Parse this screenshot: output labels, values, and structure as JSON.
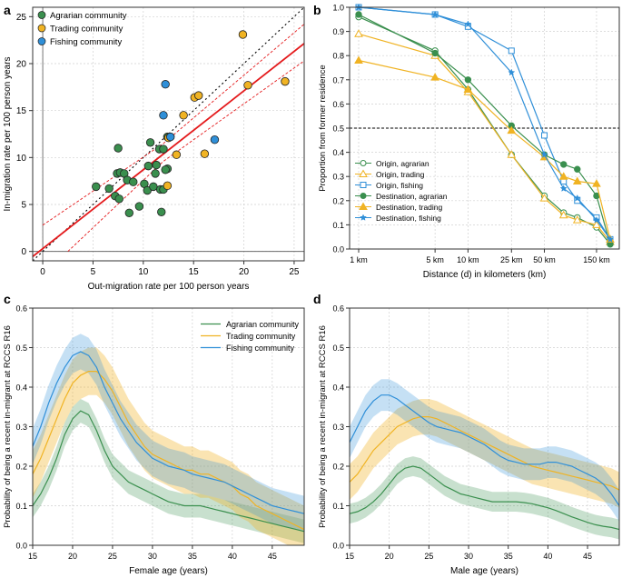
{
  "panels": {
    "a": "a",
    "b": "b",
    "c": "c",
    "d": "d"
  },
  "colors": {
    "agrarian": "#3a8f4e",
    "trading": "#f0b323",
    "fishing": "#2f8fd8",
    "fit": "#e41a1c",
    "ci": "#e41a1c",
    "identity": "#000000"
  },
  "chart_data": [
    {
      "id": "a",
      "type": "scatter",
      "xlabel": "Out-migration rate per 100 person years",
      "ylabel": "In-migration rate per 100 person years",
      "xlim": [
        -1,
        26
      ],
      "ylim": [
        -1,
        26
      ],
      "xticks": [
        0,
        5,
        10,
        15,
        20,
        25
      ],
      "yticks": [
        0,
        5,
        10,
        15,
        20,
        25
      ],
      "legend": [
        "Agrarian community",
        "Trading community",
        "Fishing community"
      ],
      "fit": {
        "intercept": 0.3,
        "slope": 0.84
      },
      "ci_upper": [
        [
          0,
          2.8
        ],
        [
          12,
          11.5
        ],
        [
          26,
          24.2
        ]
      ],
      "ci_lower": [
        [
          2.5,
          0
        ],
        [
          12,
          9.6
        ],
        [
          26,
          20.3
        ]
      ],
      "series": [
        {
          "name": "Agrarian community",
          "color_key": "agrarian",
          "points": [
            [
              5.3,
              6.9
            ],
            [
              6.6,
              6.7
            ],
            [
              7.4,
              8.3
            ],
            [
              7.7,
              8.4
            ],
            [
              7.5,
              11.0
            ],
            [
              7.2,
              5.9
            ],
            [
              7.6,
              5.6
            ],
            [
              8.1,
              8.3
            ],
            [
              8.4,
              7.6
            ],
            [
              8.6,
              4.1
            ],
            [
              9.0,
              7.4
            ],
            [
              9.6,
              4.8
            ],
            [
              10.1,
              7.2
            ],
            [
              10.4,
              6.5
            ],
            [
              10.7,
              11.6
            ],
            [
              11.0,
              6.9
            ],
            [
              11.2,
              8.3
            ],
            [
              11.3,
              9.2
            ],
            [
              11.6,
              10.9
            ],
            [
              11.7,
              6.6
            ],
            [
              11.8,
              4.2
            ],
            [
              12.0,
              10.9
            ],
            [
              12.0,
              6.6
            ],
            [
              12.4,
              8.8
            ],
            [
              12.4,
              12.2
            ],
            [
              10.5,
              9.1
            ],
            [
              12.2,
              8.7
            ]
          ]
        },
        {
          "name": "Trading community",
          "color_key": "trading",
          "points": [
            [
              12.4,
              7.0
            ],
            [
              12.5,
              12.1
            ],
            [
              13.3,
              10.3
            ],
            [
              15.1,
              16.4
            ],
            [
              15.5,
              16.6
            ],
            [
              19.9,
              23.1
            ],
            [
              20.4,
              17.7
            ],
            [
              24.1,
              18.1
            ],
            [
              16.1,
              10.4
            ],
            [
              14.0,
              14.5
            ]
          ]
        },
        {
          "name": "Fishing community",
          "color_key": "fishing",
          "points": [
            [
              12.2,
              17.8
            ],
            [
              12.0,
              14.5
            ],
            [
              17.1,
              11.9
            ],
            [
              12.7,
              12.2
            ]
          ]
        }
      ]
    },
    {
      "id": "b",
      "type": "line",
      "xlabel": "Distance (d) in kilometers (km)",
      "ylabel": "Proportion from former residence",
      "xscale": "log",
      "xlim": [
        1,
        200
      ],
      "ylim": [
        0,
        1
      ],
      "xtick_values": [
        1,
        5,
        10,
        25,
        50,
        150
      ],
      "xtick_labels": [
        "1 km",
        "5 km",
        "10 km",
        "25 km",
        "50 km",
        "150 km"
      ],
      "yticks": [
        0.0,
        0.1,
        0.2,
        0.3,
        0.4,
        0.5,
        0.6,
        0.7,
        0.8,
        0.9,
        1.0
      ],
      "reference_line": 0.5,
      "x": [
        1,
        5,
        10,
        25,
        50,
        75,
        100,
        150,
        200
      ],
      "series": [
        {
          "name": "Origin, agrarian",
          "color_key": "agrarian",
          "marker": "open-circle",
          "values": [
            0.96,
            0.82,
            0.66,
            0.39,
            0.22,
            0.15,
            0.13,
            0.09,
            0.02
          ]
        },
        {
          "name": "Origin, trading",
          "color_key": "trading",
          "marker": "open-triangle",
          "values": [
            0.89,
            0.8,
            0.65,
            0.39,
            0.21,
            0.14,
            0.12,
            0.1,
            0.03
          ]
        },
        {
          "name": "Origin, fishing",
          "color_key": "fishing",
          "marker": "open-square",
          "values": [
            1.0,
            0.97,
            0.92,
            0.82,
            0.47,
            0.28,
            0.2,
            0.13,
            0.04
          ]
        },
        {
          "name": "Destination, agrarian",
          "color_key": "agrarian",
          "marker": "filled-circle",
          "values": [
            0.97,
            0.81,
            0.7,
            0.51,
            0.39,
            0.35,
            0.33,
            0.22,
            0.02
          ]
        },
        {
          "name": "Destination, trading",
          "color_key": "trading",
          "marker": "filled-triangle",
          "values": [
            0.78,
            0.71,
            0.66,
            0.49,
            0.38,
            0.3,
            0.28,
            0.27,
            0.04
          ]
        },
        {
          "name": "Destination, fishing",
          "color_key": "fishing",
          "marker": "filled-star",
          "values": [
            1.0,
            0.97,
            0.93,
            0.73,
            0.39,
            0.25,
            0.21,
            0.12,
            0.04
          ]
        }
      ]
    },
    {
      "id": "c",
      "type": "area",
      "xlabel": "Female age (years)",
      "ylabel": "Probability of being a recent in-migrant at RCCS R16",
      "xlim": [
        15,
        49
      ],
      "ylim": [
        0,
        0.6
      ],
      "xticks": [
        15,
        20,
        25,
        30,
        35,
        40,
        45
      ],
      "yticks": [
        0.0,
        0.1,
        0.2,
        0.3,
        0.4,
        0.5,
        0.6
      ],
      "legend": [
        "Agrarian community",
        "Trading community",
        "Fishing community"
      ],
      "x": [
        15,
        16,
        17,
        18,
        19,
        20,
        21,
        22,
        23,
        24,
        25,
        26,
        27,
        28,
        29,
        30,
        31,
        32,
        33,
        34,
        35,
        36,
        37,
        38,
        39,
        40,
        41,
        42,
        43,
        44,
        45,
        46,
        47,
        48,
        49
      ],
      "series": [
        {
          "name": "Agrarian community",
          "color_key": "agrarian",
          "band_halfwidth": 0.03,
          "values": [
            0.1,
            0.13,
            0.17,
            0.22,
            0.28,
            0.32,
            0.34,
            0.33,
            0.29,
            0.24,
            0.2,
            0.18,
            0.16,
            0.15,
            0.14,
            0.13,
            0.12,
            0.11,
            0.105,
            0.1,
            0.1,
            0.1,
            0.095,
            0.09,
            0.085,
            0.08,
            0.075,
            0.07,
            0.065,
            0.06,
            0.055,
            0.05,
            0.045,
            0.04,
            0.035
          ]
        },
        {
          "name": "Trading community",
          "color_key": "trading",
          "band_halfwidth": 0.06,
          "values": [
            0.18,
            0.22,
            0.27,
            0.32,
            0.37,
            0.41,
            0.43,
            0.44,
            0.44,
            0.42,
            0.39,
            0.35,
            0.31,
            0.28,
            0.25,
            0.23,
            0.22,
            0.21,
            0.2,
            0.19,
            0.19,
            0.18,
            0.18,
            0.17,
            0.16,
            0.15,
            0.13,
            0.12,
            0.1,
            0.09,
            0.08,
            0.07,
            0.06,
            0.05,
            0.04
          ]
        },
        {
          "name": "Fishing community",
          "color_key": "fishing",
          "band_halfwidth": 0.045,
          "values": [
            0.25,
            0.3,
            0.36,
            0.41,
            0.45,
            0.48,
            0.49,
            0.48,
            0.45,
            0.4,
            0.36,
            0.32,
            0.29,
            0.26,
            0.24,
            0.22,
            0.21,
            0.2,
            0.195,
            0.19,
            0.18,
            0.175,
            0.17,
            0.165,
            0.16,
            0.15,
            0.14,
            0.13,
            0.12,
            0.11,
            0.1,
            0.095,
            0.09,
            0.085,
            0.08
          ]
        }
      ]
    },
    {
      "id": "d",
      "type": "area",
      "xlabel": "Male age (years)",
      "ylabel": "Probability of being a recent in-migrant at RCCS R16",
      "xlim": [
        15,
        49
      ],
      "ylim": [
        0,
        0.6
      ],
      "xticks": [
        15,
        20,
        25,
        30,
        35,
        40,
        45
      ],
      "yticks": [
        0.0,
        0.1,
        0.2,
        0.3,
        0.4,
        0.5,
        0.6
      ],
      "x": [
        15,
        16,
        17,
        18,
        19,
        20,
        21,
        22,
        23,
        24,
        25,
        26,
        27,
        28,
        29,
        30,
        31,
        32,
        33,
        34,
        35,
        36,
        37,
        38,
        39,
        40,
        41,
        42,
        43,
        44,
        45,
        46,
        47,
        48,
        49
      ],
      "series": [
        {
          "name": "Agrarian community",
          "color_key": "agrarian",
          "band_halfwidth": 0.025,
          "values": [
            0.08,
            0.085,
            0.095,
            0.11,
            0.13,
            0.155,
            0.18,
            0.195,
            0.2,
            0.195,
            0.18,
            0.165,
            0.15,
            0.14,
            0.13,
            0.125,
            0.12,
            0.115,
            0.11,
            0.11,
            0.11,
            0.11,
            0.108,
            0.105,
            0.1,
            0.095,
            0.088,
            0.08,
            0.072,
            0.065,
            0.058,
            0.052,
            0.048,
            0.045,
            0.04
          ]
        },
        {
          "name": "Trading community",
          "color_key": "trading",
          "band_halfwidth": 0.045,
          "values": [
            0.16,
            0.18,
            0.21,
            0.24,
            0.26,
            0.28,
            0.3,
            0.31,
            0.32,
            0.325,
            0.325,
            0.32,
            0.31,
            0.3,
            0.29,
            0.28,
            0.27,
            0.26,
            0.25,
            0.24,
            0.23,
            0.22,
            0.21,
            0.2,
            0.195,
            0.19,
            0.185,
            0.18,
            0.175,
            0.17,
            0.165,
            0.16,
            0.155,
            0.15,
            0.14
          ]
        },
        {
          "name": "Fishing community",
          "color_key": "fishing",
          "band_halfwidth": 0.04,
          "values": [
            0.26,
            0.3,
            0.34,
            0.365,
            0.38,
            0.38,
            0.37,
            0.355,
            0.34,
            0.325,
            0.31,
            0.3,
            0.295,
            0.29,
            0.285,
            0.275,
            0.265,
            0.255,
            0.24,
            0.225,
            0.215,
            0.21,
            0.205,
            0.205,
            0.205,
            0.21,
            0.21,
            0.205,
            0.2,
            0.19,
            0.18,
            0.17,
            0.155,
            0.13,
            0.1
          ]
        }
      ]
    }
  ]
}
